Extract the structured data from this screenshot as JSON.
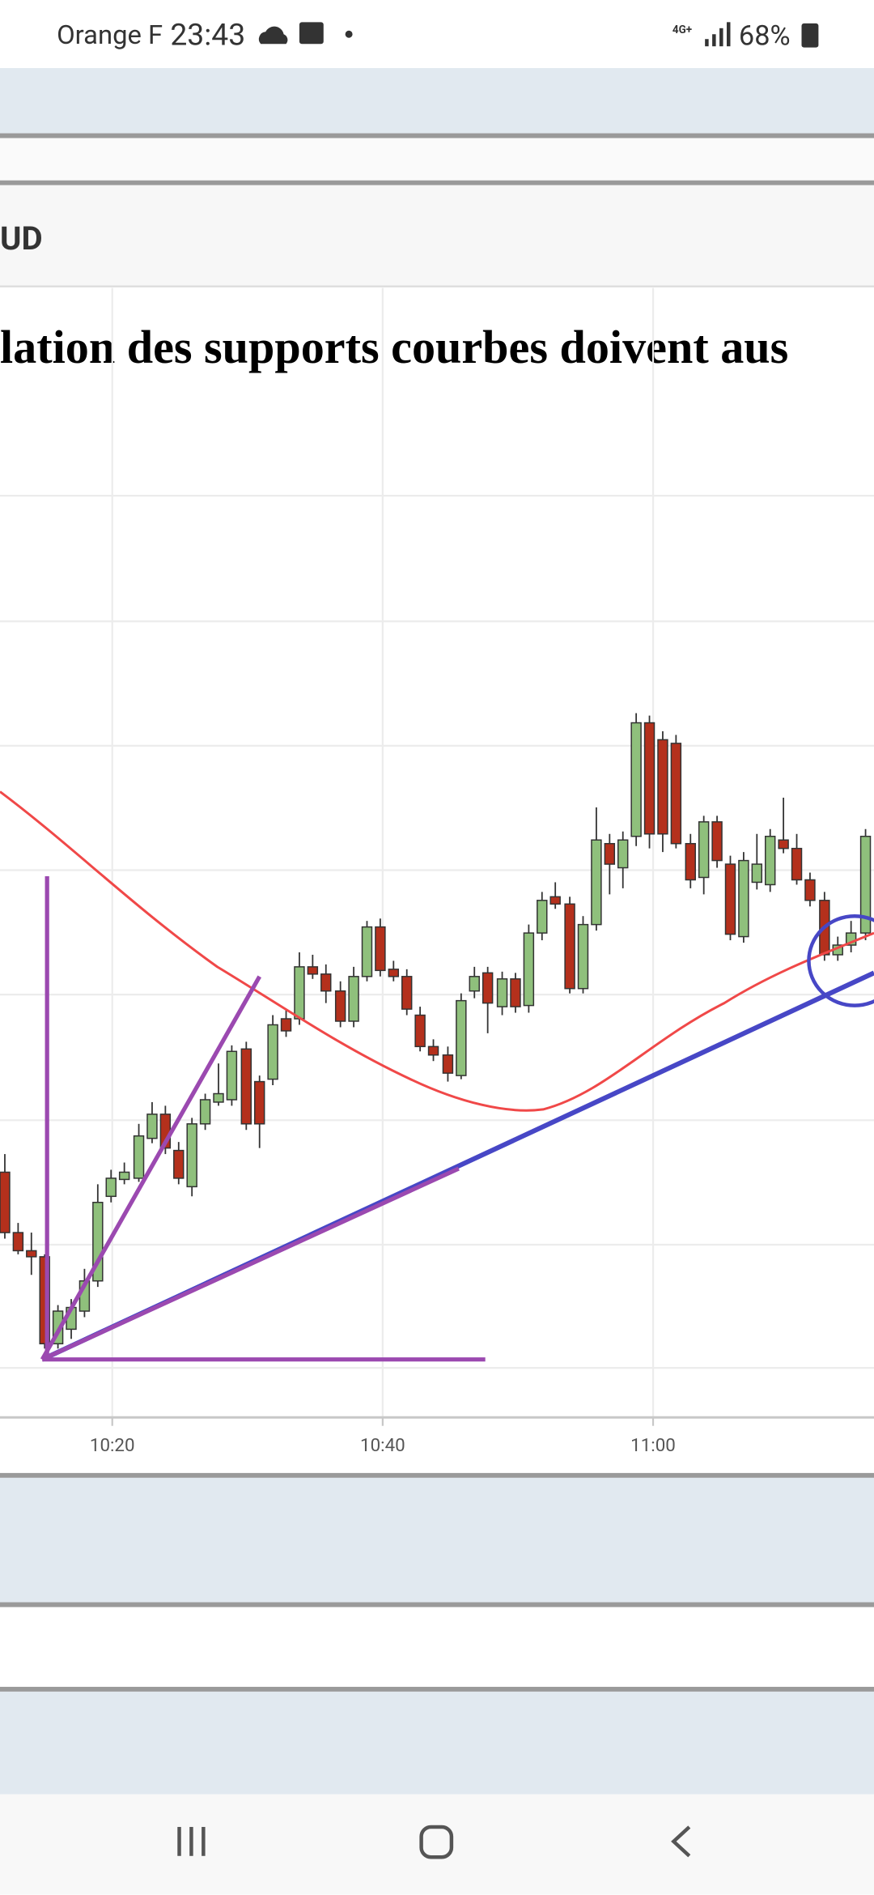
{
  "status_bar": {
    "carrier": "Orange F",
    "time": "23:43",
    "network": "4G+",
    "battery": "68%"
  },
  "header": {
    "title": "UD"
  },
  "article": {
    "heading": "lation des supports courbes doivent aus"
  },
  "chart": {
    "x_tick_labels": [
      "10:20",
      "10:40",
      "11:00"
    ]
  }
}
